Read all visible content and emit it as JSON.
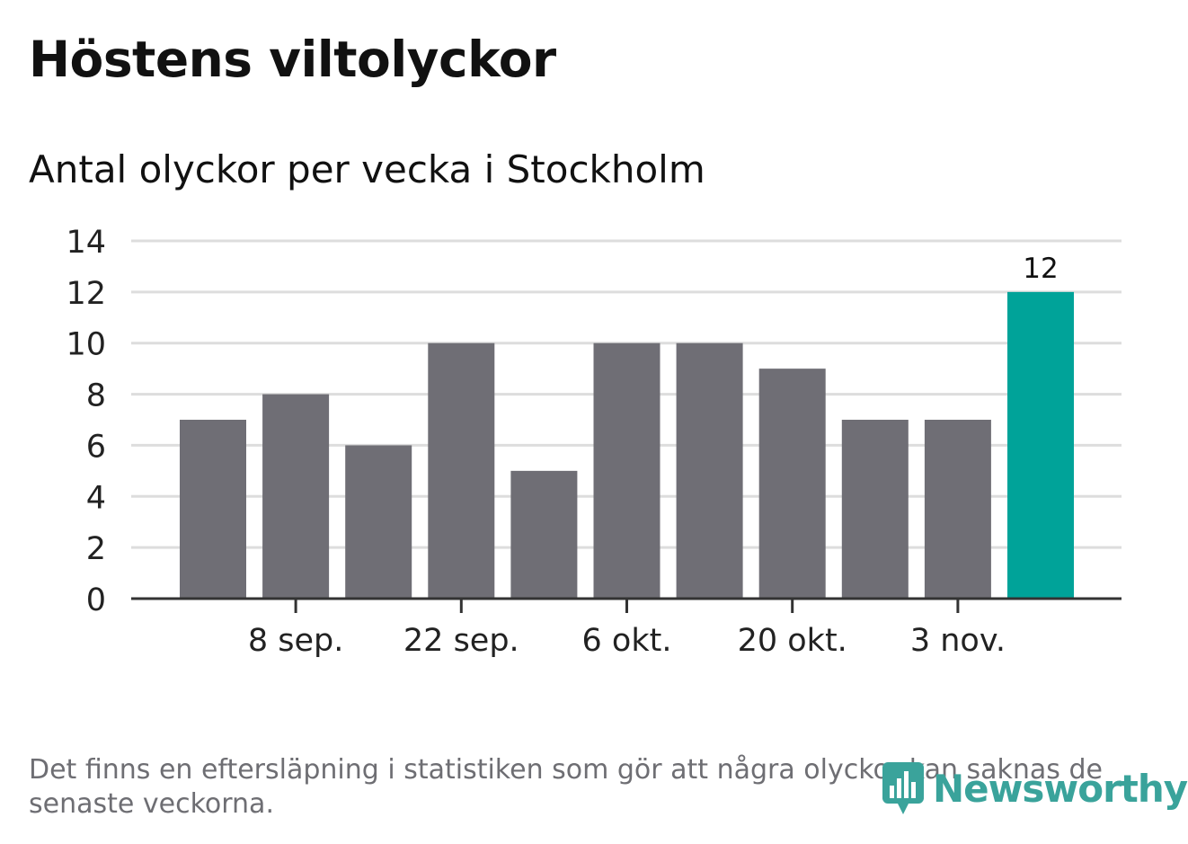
{
  "header": {
    "title": "Höstens viltolyckor",
    "subtitle": "Antal olyckor per vecka i Stockholm"
  },
  "chart_data": {
    "type": "bar",
    "title": "Höstens viltolyckor",
    "subtitle": "Antal olyckor per vecka i Stockholm",
    "values": [
      7,
      8,
      6,
      10,
      5,
      10,
      10,
      9,
      7,
      7,
      12
    ],
    "x_tick_labels": [
      "8 sep.",
      "22 sep.",
      "6 okt.",
      "20 okt.",
      "3 nov."
    ],
    "y_ticks": [
      0,
      2,
      4,
      6,
      8,
      10,
      12,
      14
    ],
    "ylim": [
      0,
      14
    ],
    "grid": true,
    "highlight_last": true,
    "data_labels": [
      {
        "bar_index": 10,
        "text": "12"
      }
    ],
    "colors": {
      "bar": "#6f6e75",
      "highlight": "#00a399",
      "grid": "#dddddd",
      "axis": "#333333"
    }
  },
  "footer": {
    "note": "Det finns en eftersläpning i statistiken som gör att några olyckor kan saknas de senaste veckorna.",
    "logo_text": "Newsworthy",
    "logo_icon": "newsworthy-logo-icon"
  }
}
